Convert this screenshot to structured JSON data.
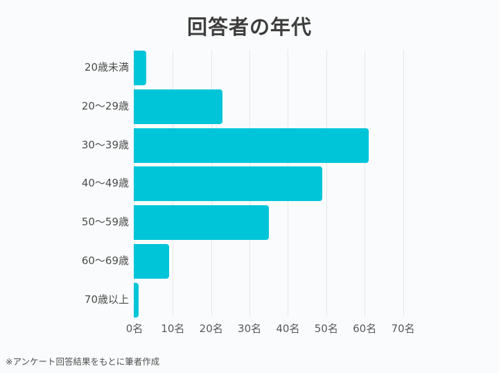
{
  "title": "回答者の年代",
  "footnote": "※アンケート回答結果をもとに筆者作成",
  "colors": {
    "background": "#fafbfc",
    "bar": "#00c5d9",
    "gridline": "#e4e7ea",
    "title_text": "#3d3d3d",
    "category_text": "#4b4b4b",
    "tick_text": "#55595e"
  },
  "chart_data": {
    "type": "bar",
    "orientation": "horizontal",
    "title": "回答者の年代",
    "categories": [
      "20歳未満",
      "20〜29歳",
      "30〜39歳",
      "40〜49歳",
      "50〜59歳",
      "60〜69歳",
      "70歳以上"
    ],
    "values": [
      3,
      23,
      61,
      49,
      35,
      9,
      1
    ],
    "unit": "名",
    "xlabel": "",
    "ylabel": "",
    "xlim": [
      0,
      70
    ],
    "x_tick_step": 10,
    "x_tick_labels": [
      "0名",
      "10名",
      "20名",
      "30名",
      "40名",
      "50名",
      "60名",
      "70名"
    ],
    "grid": "vertical",
    "legend_position": "none"
  }
}
